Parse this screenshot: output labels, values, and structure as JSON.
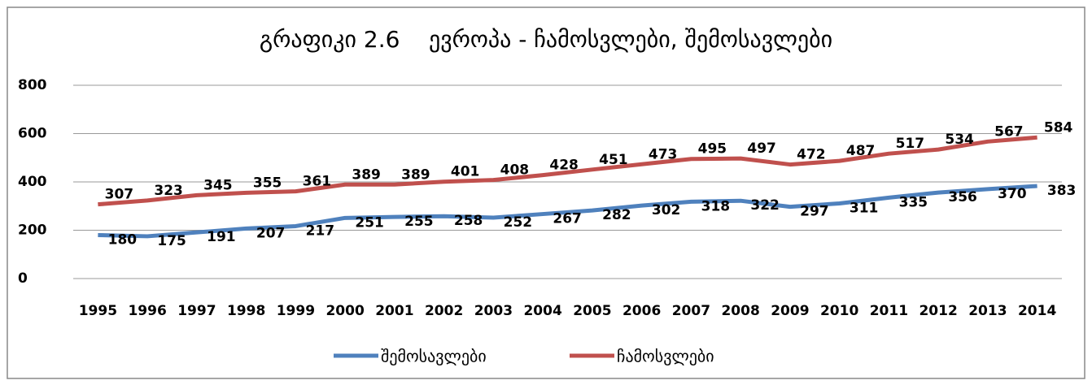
{
  "chart_data": {
    "type": "line",
    "title": "გრაფიკი 2.6    ევროპა - ჩამოსვლები, შემოსავლები",
    "categories": [
      "1995",
      "1996",
      "1997",
      "1998",
      "1999",
      "2000",
      "2001",
      "2002",
      "2003",
      "2004",
      "2005",
      "2006",
      "2007",
      "2008",
      "2009",
      "2010",
      "2011",
      "2012",
      "2013",
      "2014"
    ],
    "series": [
      {
        "name": "შემოსავლები",
        "color": "#4f81bd",
        "values": [
          180,
          175,
          191,
          207,
          217,
          251,
          255,
          258,
          252,
          267,
          282,
          302,
          318,
          322,
          297,
          311,
          335,
          356,
          370,
          383
        ]
      },
      {
        "name": "ჩამოსვლები",
        "color": "#c0504d",
        "values": [
          307,
          323,
          345,
          355,
          361,
          389,
          389,
          401,
          408,
          428,
          451,
          473,
          495,
          497,
          472,
          487,
          517,
          534,
          567,
          584
        ]
      }
    ],
    "ylim": [
      0,
      800
    ],
    "yticks": [
      0,
      200,
      400,
      600,
      800
    ],
    "grid": true,
    "legend": "bottom"
  }
}
